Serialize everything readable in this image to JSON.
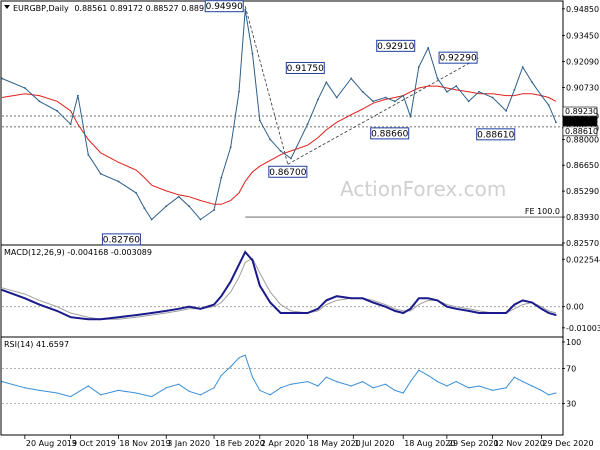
{
  "chart_data": {
    "type": "line",
    "symbol": "EURGBP",
    "timeframe": "Daily",
    "header": {
      "title": "EURGBP,Daily",
      "ohlc": "0.88561 0.89172 0.88527 0.88935"
    },
    "watermark": "ActionForex.com",
    "x_ticks": [
      "20 Aug 2019",
      "3 Oct 2019",
      "18 Nov 2019",
      "3 Jan 2020",
      "18 Feb 2020",
      "2 Apr 2020",
      "18 May 2020",
      "1 Jul 2020",
      "18 Aug 2020",
      "29 Sep 2020",
      "12 Nov 2020",
      "29 Dec 2020"
    ],
    "price": {
      "y_ticks": [
        "0.94850",
        "0.93450",
        "0.92090",
        "0.90730",
        "0.89230",
        "0.88610",
        "0.88000",
        "0.86650",
        "0.85290",
        "0.83930",
        "0.82570"
      ],
      "y_tick_values": [
        0.9485,
        0.9345,
        0.9209,
        0.9073,
        0.8923,
        0.8861,
        0.88,
        0.8665,
        0.8529,
        0.8393,
        0.8257
      ],
      "ylim": [
        0.8257,
        0.95
      ],
      "x_dates": [
        "2019-07-29",
        "2019-08-20",
        "2019-09-03",
        "2019-09-20",
        "2019-10-03",
        "2019-10-10",
        "2019-10-20",
        "2019-11-01",
        "2019-11-18",
        "2019-12-05",
        "2019-12-13",
        "2019-12-20",
        "2020-01-03",
        "2020-01-15",
        "2020-01-25",
        "2020-02-05",
        "2020-02-18",
        "2020-02-25",
        "2020-03-05",
        "2020-03-13",
        "2020-03-19",
        "2020-03-26",
        "2020-04-02",
        "2020-04-12",
        "2020-04-22",
        "2020-05-02",
        "2020-05-18",
        "2020-05-28",
        "2020-06-05",
        "2020-06-15",
        "2020-06-29",
        "2020-07-10",
        "2020-07-20",
        "2020-08-01",
        "2020-08-10",
        "2020-08-18",
        "2020-08-25",
        "2020-09-02",
        "2020-09-11",
        "2020-09-20",
        "2020-09-29",
        "2020-10-08",
        "2020-10-20",
        "2020-10-30",
        "2020-11-12",
        "2020-11-25",
        "2020-12-03",
        "2020-12-11",
        "2020-12-20",
        "2020-12-29",
        "2021-01-05",
        "2021-01-12"
      ],
      "close": [
        0.912,
        0.907,
        0.9,
        0.895,
        0.888,
        0.903,
        0.872,
        0.862,
        0.858,
        0.852,
        0.844,
        0.838,
        0.845,
        0.85,
        0.845,
        0.838,
        0.843,
        0.86,
        0.876,
        0.905,
        0.948,
        0.925,
        0.89,
        0.88,
        0.874,
        0.87,
        0.888,
        0.901,
        0.91,
        0.902,
        0.912,
        0.905,
        0.9,
        0.902,
        0.9,
        0.903,
        0.892,
        0.918,
        0.928,
        0.912,
        0.905,
        0.908,
        0.9,
        0.905,
        0.902,
        0.895,
        0.906,
        0.918,
        0.91,
        0.903,
        0.898,
        0.889
      ],
      "sma_label": "SMA 55",
      "sma": [
        0.902,
        0.904,
        0.903,
        0.9,
        0.895,
        0.888,
        0.88,
        0.873,
        0.868,
        0.864,
        0.86,
        0.856,
        0.853,
        0.851,
        0.85,
        0.848,
        0.846,
        0.846,
        0.848,
        0.852,
        0.858,
        0.863,
        0.866,
        0.869,
        0.872,
        0.874,
        0.877,
        0.881,
        0.885,
        0.889,
        0.893,
        0.896,
        0.899,
        0.901,
        0.902,
        0.903,
        0.905,
        0.907,
        0.908,
        0.908,
        0.907,
        0.906,
        0.905,
        0.904,
        0.904,
        0.903,
        0.903,
        0.904,
        0.904,
        0.903,
        0.902,
        0.9
      ],
      "annotations": [
        {
          "label": "0.94990",
          "date": "2020-03-19",
          "value": 0.9499
        },
        {
          "label": "0.92910",
          "date": "2020-08-31",
          "value": 0.9291
        },
        {
          "label": "0.92290",
          "date": "2020-10-30",
          "value": 0.9229
        },
        {
          "label": "0.91750",
          "date": "2020-06-05",
          "value": 0.9175
        },
        {
          "label": "0.88660",
          "date": "2020-08-05",
          "value": 0.8866
        },
        {
          "label": "0.88610",
          "date": "2020-11-15",
          "value": 0.8861
        },
        {
          "label": "0.86700",
          "date": "2020-04-29",
          "value": 0.867
        },
        {
          "label": "0.82760",
          "date": "2019-12-13",
          "value": 0.8276
        }
      ],
      "current_price_labels": [
        "0.89230",
        "0.88935",
        "0.88610"
      ],
      "current_price_values": [
        0.8923,
        0.88935,
        0.8861
      ],
      "levels": [
        0.8923,
        0.8866,
        0.8393
      ],
      "fe_label": "FE 100.0",
      "fe_value": 0.8393,
      "fe_start_date": "2020-03-19"
    },
    "macd": {
      "header": "MACD(12,26,9) -0.004168 -0.003089",
      "y_ticks": [
        "0.022544",
        "0.00",
        "-0.010039"
      ],
      "y_tick_values": [
        0.022544,
        0.0,
        -0.010039
      ],
      "ylim": [
        -0.0125,
        0.026
      ],
      "x_dates": [
        "2019-07-29",
        "2019-08-20",
        "2019-09-03",
        "2019-09-20",
        "2019-10-03",
        "2019-10-20",
        "2019-11-01",
        "2019-11-18",
        "2019-12-05",
        "2019-12-20",
        "2020-01-03",
        "2020-01-15",
        "2020-01-25",
        "2020-02-05",
        "2020-02-18",
        "2020-02-25",
        "2020-03-05",
        "2020-03-13",
        "2020-03-19",
        "2020-03-26",
        "2020-04-02",
        "2020-04-12",
        "2020-04-22",
        "2020-05-02",
        "2020-05-18",
        "2020-05-28",
        "2020-06-05",
        "2020-06-15",
        "2020-06-29",
        "2020-07-10",
        "2020-07-20",
        "2020-08-01",
        "2020-08-10",
        "2020-08-18",
        "2020-08-25",
        "2020-09-02",
        "2020-09-11",
        "2020-09-20",
        "2020-09-29",
        "2020-10-08",
        "2020-10-20",
        "2020-10-30",
        "2020-11-12",
        "2020-11-25",
        "2020-12-03",
        "2020-12-11",
        "2020-12-20",
        "2020-12-29",
        "2021-01-05",
        "2021-01-12"
      ],
      "macd": [
        0.008,
        0.004,
        0.001,
        -0.002,
        -0.005,
        -0.006,
        -0.006,
        -0.005,
        -0.004,
        -0.003,
        -0.002,
        -0.001,
        0.0,
        -0.001,
        0.001,
        0.005,
        0.012,
        0.02,
        0.026,
        0.022,
        0.01,
        0.002,
        -0.003,
        -0.003,
        -0.003,
        -0.001,
        0.003,
        0.005,
        0.004,
        0.004,
        0.002,
        0.0,
        -0.002,
        -0.003,
        -0.001,
        0.004,
        0.004,
        0.003,
        0.0,
        -0.001,
        -0.002,
        -0.003,
        -0.003,
        -0.003,
        0.001,
        0.003,
        0.002,
        -0.001,
        -0.003,
        -0.004
      ],
      "signal": [
        0.009,
        0.006,
        0.003,
        0.0,
        -0.003,
        -0.005,
        -0.006,
        -0.006,
        -0.005,
        -0.004,
        -0.003,
        -0.002,
        -0.001,
        -0.001,
        0.0,
        0.002,
        0.007,
        0.014,
        0.021,
        0.023,
        0.016,
        0.007,
        0.001,
        -0.002,
        -0.003,
        -0.002,
        0.001,
        0.003,
        0.004,
        0.004,
        0.003,
        0.001,
        -0.001,
        -0.002,
        -0.002,
        0.001,
        0.003,
        0.003,
        0.001,
        0.0,
        -0.001,
        -0.002,
        -0.003,
        -0.003,
        -0.001,
        0.001,
        0.002,
        0.0,
        -0.002,
        -0.003
      ],
      "zero_line": 0.0
    },
    "rsi": {
      "header": "RSI(14) 41.6597",
      "y_ticks": [
        "100",
        "70",
        "30",
        "0"
      ],
      "y_tick_values": [
        100,
        70,
        30,
        0
      ],
      "ylim": [
        0,
        100
      ],
      "x_dates": [
        "2019-07-29",
        "2019-08-20",
        "2019-09-03",
        "2019-09-20",
        "2019-10-03",
        "2019-10-20",
        "2019-11-01",
        "2019-11-18",
        "2019-12-05",
        "2019-12-20",
        "2020-01-03",
        "2020-01-15",
        "2020-01-25",
        "2020-02-05",
        "2020-02-18",
        "2020-02-25",
        "2020-03-05",
        "2020-03-13",
        "2020-03-19",
        "2020-03-26",
        "2020-04-02",
        "2020-04-12",
        "2020-04-22",
        "2020-05-02",
        "2020-05-18",
        "2020-05-28",
        "2020-06-05",
        "2020-06-15",
        "2020-06-29",
        "2020-07-10",
        "2020-07-20",
        "2020-08-01",
        "2020-08-10",
        "2020-08-18",
        "2020-08-25",
        "2020-09-02",
        "2020-09-11",
        "2020-09-20",
        "2020-09-29",
        "2020-10-08",
        "2020-10-20",
        "2020-10-30",
        "2020-11-12",
        "2020-11-25",
        "2020-12-03",
        "2020-12-11",
        "2020-12-20",
        "2020-12-29",
        "2021-01-05",
        "2021-01-12"
      ],
      "values": [
        55,
        48,
        45,
        42,
        38,
        50,
        40,
        45,
        42,
        38,
        48,
        52,
        44,
        40,
        48,
        62,
        72,
        82,
        85,
        60,
        45,
        40,
        48,
        52,
        55,
        50,
        60,
        55,
        50,
        55,
        48,
        52,
        45,
        42,
        55,
        68,
        62,
        55,
        50,
        55,
        48,
        50,
        45,
        48,
        60,
        55,
        50,
        45,
        40,
        42
      ],
      "levels": [
        70,
        30
      ]
    }
  }
}
